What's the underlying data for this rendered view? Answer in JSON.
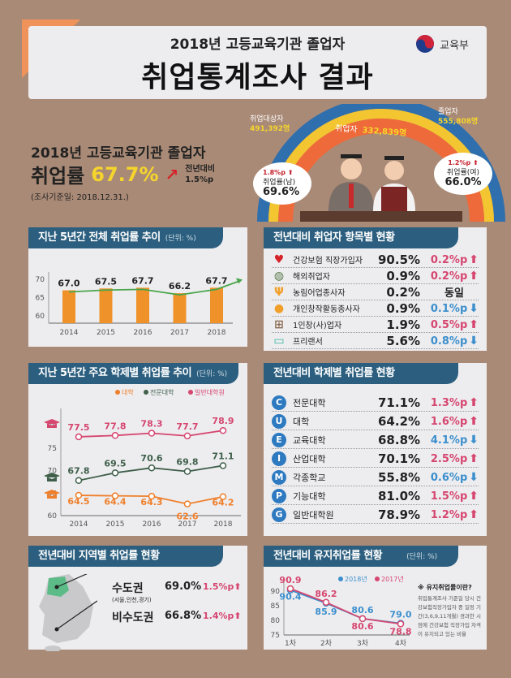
{
  "header": {
    "subtitle": "2018년 고등교육기관 졸업자",
    "title": "취업통계조사 결과",
    "ministry": "교육부"
  },
  "summary": {
    "line1": "2018년 고등교육기관 졸업자",
    "rate_label": "취업률",
    "rate": "67.7%",
    "yoy_label": "전년대비",
    "yoy": "1.5%p",
    "date": "(조사기준일: 2018.12.31.)",
    "target_label": "취업대상자",
    "target": "491,392명",
    "employed_label": "취업자",
    "employed": "332,839명",
    "grad_label": "졸업자",
    "grad": "555,808명",
    "male_change": "1.8%p",
    "male_label": "취업률(남)",
    "male_rate": "69.6%",
    "female_change": "1.2%p",
    "female_label": "취업률(여)",
    "female_rate": "66.0%"
  },
  "colors": {
    "bg": "#a98a76",
    "header": "#2c5f7f",
    "up": "#d6466f",
    "down": "#3c8fcc",
    "bar": "#f0922a",
    "trend": "#4aa54a",
    "univ": "#ef7f2a",
    "college": "#3f5f4a",
    "grad": "#d6466f"
  },
  "panel1": {
    "title": "지난 5년간 전체 취업률 추이",
    "unit": "(단위: %)"
  },
  "panel2": {
    "title": "전년대비 취업자 항목별 현황",
    "items": [
      {
        "label": "건강보험 직장가입자",
        "value": "90.5%",
        "change": "0.2%p",
        "dir": "up",
        "icon": "health-insurance-icon"
      },
      {
        "label": "해외취업자",
        "value": "0.9%",
        "change": "0.2%p",
        "dir": "up",
        "icon": "globe-icon"
      },
      {
        "label": "농림어업종사자",
        "value": "0.2%",
        "change": "동일",
        "dir": "same",
        "icon": "fork-icon"
      },
      {
        "label": "개인창작활동종사자",
        "value": "0.9%",
        "change": "0.1%p",
        "dir": "down",
        "icon": "palette-icon"
      },
      {
        "label": "1인창(사)업자",
        "value": "1.9%",
        "change": "0.5%p",
        "dir": "up",
        "icon": "cart-icon"
      },
      {
        "label": "프리랜서",
        "value": "5.6%",
        "change": "0.8%p",
        "dir": "down",
        "icon": "monitor-icon"
      }
    ]
  },
  "panel3": {
    "title": "지난 5년간 주요 학제별 취업률 추이",
    "unit": "(단위: %)"
  },
  "panel4": {
    "title": "전년대비 학제별 취업률 현황",
    "items": [
      {
        "letter": "C",
        "label": "전문대학",
        "value": "71.1%",
        "change": "1.3%p",
        "dir": "up"
      },
      {
        "letter": "U",
        "label": "대학",
        "value": "64.2%",
        "change": "1.6%p",
        "dir": "up"
      },
      {
        "letter": "E",
        "label": "교육대학",
        "value": "68.8%",
        "change": "4.1%p",
        "dir": "down"
      },
      {
        "letter": "I",
        "label": "산업대학",
        "value": "70.1%",
        "change": "2.5%p",
        "dir": "up"
      },
      {
        "letter": "M",
        "label": "각종학교",
        "value": "55.8%",
        "change": "0.6%p",
        "dir": "down"
      },
      {
        "letter": "P",
        "label": "기능대학",
        "value": "81.0%",
        "change": "1.5%p",
        "dir": "up"
      },
      {
        "letter": "G",
        "label": "일반대학원",
        "value": "78.9%",
        "change": "1.2%p",
        "dir": "up"
      }
    ]
  },
  "panel5": {
    "title": "전년대비 지역별 취업률 현황",
    "regions": [
      {
        "label": "수도권",
        "note": "(서울,인천,경기)",
        "value": "69.0%",
        "change": "1.5%p"
      },
      {
        "label": "비수도권",
        "note": "",
        "value": "66.8%",
        "change": "1.4%p"
      }
    ]
  },
  "panel6": {
    "title": "전년대비 유지취업률 현황",
    "unit": "(단위: %)",
    "note_title": "※ 유지취업률이란?",
    "note": "취업통계조사 기준일 당시 건강보험직장가입자 중 일정 기간(3,6,9,11개월) 경과한 시점에 건강보험 직장가입 자격이 유지되고 있는 비율"
  },
  "chart_data": [
    {
      "type": "bar",
      "title": "지난 5년간 전체 취업률 추이",
      "categories": [
        "2014",
        "2015",
        "2016",
        "2017",
        "2018"
      ],
      "values": [
        67.0,
        67.5,
        67.7,
        66.2,
        67.7
      ],
      "yticks": [
        60,
        65,
        70
      ],
      "ylim": [
        58,
        72
      ]
    },
    {
      "type": "line",
      "title": "지난 5년간 주요 학제별 취업률 추이",
      "categories": [
        "2014",
        "2015",
        "2016",
        "2017",
        "2018"
      ],
      "yticks": [
        60,
        65,
        70,
        75,
        80
      ],
      "ylim": [
        60,
        82
      ],
      "series": [
        {
          "name": "대학",
          "values": [
            64.5,
            64.4,
            64.3,
            62.6,
            64.2
          ]
        },
        {
          "name": "전문대학",
          "values": [
            67.8,
            69.5,
            70.6,
            69.8,
            71.1
          ]
        },
        {
          "name": "일반대학원",
          "values": [
            77.5,
            77.8,
            78.3,
            77.7,
            78.9
          ]
        }
      ],
      "legend": "top-right"
    },
    {
      "type": "line",
      "title": "전년대비 유지취업률 현황",
      "categories": [
        "1차",
        "2차",
        "3차",
        "4차"
      ],
      "yticks": [
        75,
        80,
        85,
        90
      ],
      "ylim": [
        75,
        92
      ],
      "series": [
        {
          "name": "2018년",
          "values": [
            90.4,
            85.9,
            80.6,
            79.0
          ]
        },
        {
          "name": "2017년",
          "values": [
            90.9,
            86.2,
            80.6,
            78.8
          ]
        }
      ],
      "legend": "top-right"
    }
  ]
}
